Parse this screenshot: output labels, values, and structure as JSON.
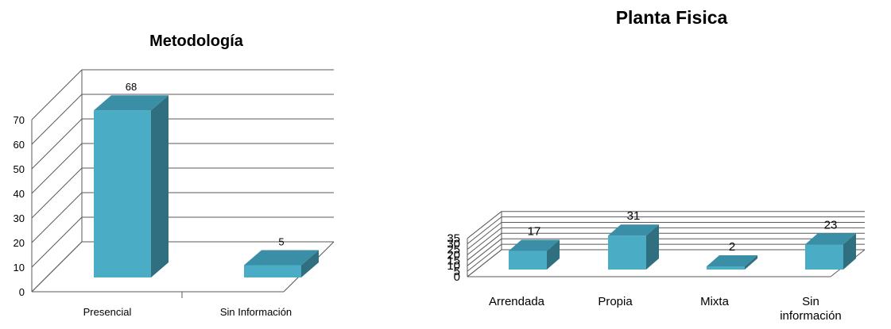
{
  "chart_data": [
    {
      "type": "bar",
      "title": "Metodología",
      "categories": [
        "Presencial",
        "Sin Información"
      ],
      "values": [
        68,
        5
      ],
      "data_labels": [
        "68",
        "5"
      ],
      "yticks": [
        0,
        10,
        20,
        30,
        40,
        50,
        60,
        70
      ],
      "ylim": [
        0,
        70
      ],
      "xlabel": "",
      "ylabel": "",
      "grid": true,
      "style": "3d",
      "colors": {
        "front": "#4bacc6",
        "side": "#2f6f80",
        "top": "#3a8ea6",
        "grid": "#595959"
      }
    },
    {
      "type": "bar",
      "title": "Planta Fisica",
      "categories": [
        "Arrendada",
        "Propia",
        "Mixta",
        "Sin información"
      ],
      "values": [
        17,
        31,
        2,
        23
      ],
      "data_labels": [
        "17",
        "31",
        "2",
        "23"
      ],
      "yticks": [
        0,
        5,
        10,
        15,
        20,
        25,
        30,
        35
      ],
      "ylim": [
        0,
        35
      ],
      "xlabel": "",
      "ylabel": "",
      "grid": true,
      "style": "3d",
      "colors": {
        "front": "#4bacc6",
        "side": "#2f6f80",
        "top": "#3a8ea6",
        "grid": "#595959"
      }
    }
  ]
}
